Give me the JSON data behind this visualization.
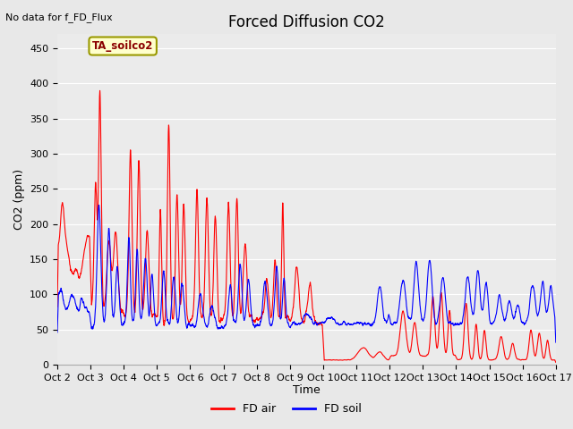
{
  "title": "Forced Diffusion CO2",
  "top_left_text": "No data for f_FD_Flux",
  "ylabel": "CO2 (ppm)",
  "xlabel": "Time",
  "annotation_box": "TA_soilco2",
  "ylim": [
    0,
    470
  ],
  "yticks": [
    0,
    50,
    100,
    150,
    200,
    250,
    300,
    350,
    400,
    450
  ],
  "xtick_labels": [
    "Oct 2",
    "Oct 3",
    "Oct 4",
    "Oct 5",
    "Oct 6",
    "Oct 7",
    "Oct 8",
    "Oct 9",
    "Oct 10",
    "Oct 11",
    "Oct 12",
    "Oct 13",
    "Oct 14",
    "Oct 15",
    "Oct 16",
    "Oct 17"
  ],
  "legend_entries": [
    "FD air",
    "FD soil"
  ],
  "legend_colors": [
    "#ff0000",
    "#0000ff"
  ],
  "background_color": "#e8e8e8",
  "plot_bg_color": "#ebebeb",
  "title_fontsize": 12,
  "axis_fontsize": 9,
  "tick_fontsize": 8,
  "red_line_color": "#ff0000",
  "blue_line_color": "#0000ff",
  "num_points": 3000,
  "figwidth": 6.4,
  "figheight": 4.8,
  "dpi": 100
}
